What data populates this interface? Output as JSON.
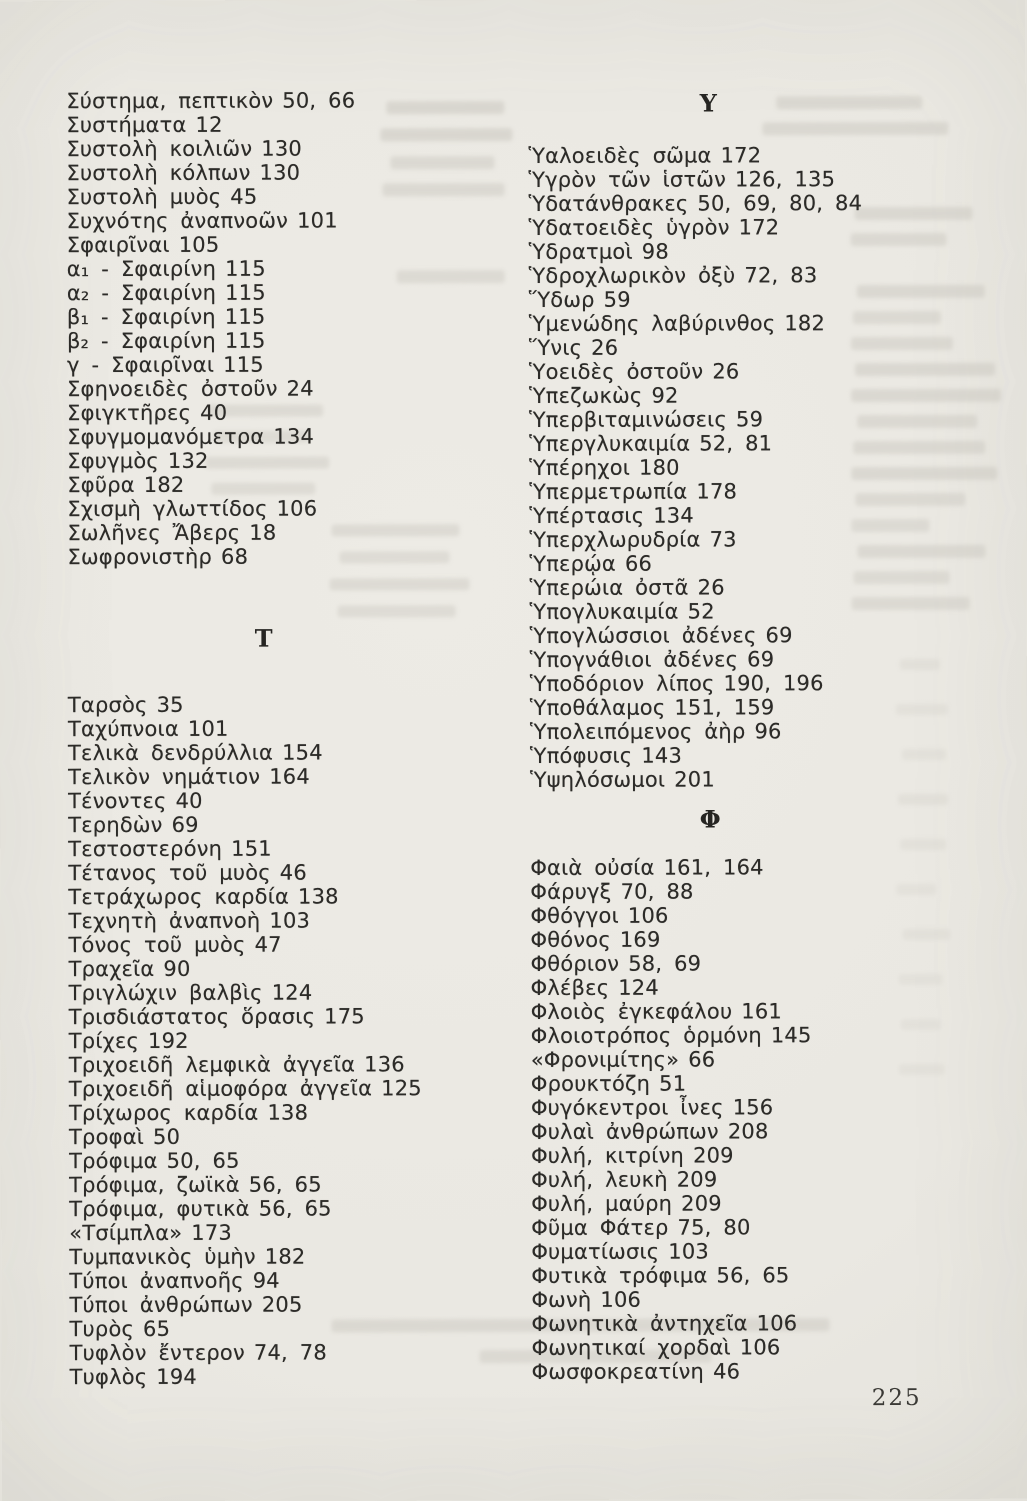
{
  "page": {
    "number": "225"
  },
  "left_column": {
    "sections": [
      {
        "heading": null,
        "entries": [
          {
            "term": "Σύστημα, πεπτικὸν",
            "pages": "50, 66"
          },
          {
            "term": "Συστήματα",
            "pages": "12"
          },
          {
            "term": "Συστολὴ κοιλιῶν",
            "pages": "130"
          },
          {
            "term": "Συστολὴ κόλπων",
            "pages": "130"
          },
          {
            "term": "Συστολὴ μυὸς",
            "pages": "45"
          },
          {
            "term": "Συχνότης ἀναπνοῶν",
            "pages": "101"
          },
          {
            "term": "Σφαιρῖναι",
            "pages": "105"
          },
          {
            "term": "α₁ - Σφαιρίνη",
            "pages": "115"
          },
          {
            "term": "α₂ - Σφαιρίνη",
            "pages": "115"
          },
          {
            "term": "β₁ - Σφαιρίνη",
            "pages": "115"
          },
          {
            "term": "β₂ - Σφαιρίνη",
            "pages": "115"
          },
          {
            "term": "γ - Σφαιρῖναι",
            "pages": "115"
          },
          {
            "term": "Σφηνοειδὲς ὀστοῦν",
            "pages": "24"
          },
          {
            "term": "Σφιγκτῆρες",
            "pages": "40"
          },
          {
            "term": "Σφυγμομανόμετρα",
            "pages": "134"
          },
          {
            "term": "Σφυγμὸς",
            "pages": "132"
          },
          {
            "term": "Σφῦρα",
            "pages": "182"
          },
          {
            "term": "Σχισμὴ γλωττίδος",
            "pages": "106"
          },
          {
            "term": "Σωλῆνες Ἄβερς",
            "pages": "18"
          },
          {
            "term": "Σωφρονιστὴρ",
            "pages": "68"
          }
        ]
      },
      {
        "heading": "Τ",
        "entries": [
          {
            "term": "Ταρσὸς",
            "pages": "35"
          },
          {
            "term": "Ταχύπνοια",
            "pages": "101"
          },
          {
            "term": "Τελικὰ δενδρύλλια",
            "pages": "154"
          },
          {
            "term": "Τελικὸν νημάτιον",
            "pages": "164"
          },
          {
            "term": "Τένοντες",
            "pages": "40"
          },
          {
            "term": "Τερηδὼν",
            "pages": "69"
          },
          {
            "term": "Τεστοστερόνη",
            "pages": "151"
          },
          {
            "term": "Τέτανος τοῦ μυὸς",
            "pages": "46"
          },
          {
            "term": "Τετράχωρος καρδία",
            "pages": "138"
          },
          {
            "term": "Τεχνητὴ ἀναπνοὴ",
            "pages": "103"
          },
          {
            "term": "Τόνος τοῦ μυὸς",
            "pages": "47"
          },
          {
            "term": "Τραχεῖα",
            "pages": "90"
          },
          {
            "term": "Τριγλώχιν βαλβὶς",
            "pages": "124"
          },
          {
            "term": "Τρισδιάστατος ὅρασις",
            "pages": "175"
          },
          {
            "term": "Τρίχες",
            "pages": "192"
          },
          {
            "term": "Τριχοειδῆ λεμφικὰ ἀγγεῖα",
            "pages": "136"
          },
          {
            "term": "Τριχοειδῆ αἱμοφόρα ἀγγεῖα",
            "pages": "125"
          },
          {
            "term": "Τρίχωρος καρδία",
            "pages": "138"
          },
          {
            "term": "Τροφαὶ",
            "pages": "50"
          },
          {
            "term": "Τρόφιμα",
            "pages": "50, 65"
          },
          {
            "term": "Τρόφιμα, ζωϊκὰ",
            "pages": "56, 65"
          },
          {
            "term": "Τρόφιμα, φυτικὰ",
            "pages": "56, 65"
          },
          {
            "term": "«Τσίμπλα»",
            "pages": "173"
          },
          {
            "term": "Τυμπανικὸς ὑμὴν",
            "pages": "182"
          },
          {
            "term": "Τύποι ἀναπνοῆς",
            "pages": "94"
          },
          {
            "term": "Τύποι ἀνθρώπων",
            "pages": "205"
          },
          {
            "term": "Τυρὸς",
            "pages": "65"
          },
          {
            "term": "Τυφλὸν ἔντερον",
            "pages": "74, 78"
          },
          {
            "term": "Τυφλὸς",
            "pages": "194"
          }
        ]
      }
    ]
  },
  "right_column": {
    "sections": [
      {
        "heading": "Υ",
        "entries": [
          {
            "term": "Ὑαλοειδὲς σῶμα",
            "pages": "172"
          },
          {
            "term": "Ὑγρὸν τῶν ἱστῶν",
            "pages": "126, 135"
          },
          {
            "term": "Ὑδατάνθρακες",
            "pages": "50, 69, 80, 84"
          },
          {
            "term": "Ὑδατοειδὲς ὑγρὸν",
            "pages": "172"
          },
          {
            "term": "Ὑδρατμοὶ",
            "pages": "98"
          },
          {
            "term": "Ὑδροχλωρικὸν ὀξὺ",
            "pages": "72, 83"
          },
          {
            "term": "Ὕδωρ",
            "pages": "59"
          },
          {
            "term": "Ὑμενώδης λαβύρινθος",
            "pages": "182"
          },
          {
            "term": "Ὕνις",
            "pages": "26"
          },
          {
            "term": "Ὑοειδὲς ὀστοῦν",
            "pages": "26"
          },
          {
            "term": "Ὑπεζωκὼς",
            "pages": "92"
          },
          {
            "term": "Ὑπερβιταμινώσεις",
            "pages": "59"
          },
          {
            "term": "Ὑπεργλυκαιμία",
            "pages": "52, 81"
          },
          {
            "term": "Ὑπέρηχοι",
            "pages": "180"
          },
          {
            "term": "Ὑπερμετρωπία",
            "pages": "178"
          },
          {
            "term": "Ὑπέρτασις",
            "pages": "134"
          },
          {
            "term": "Ὑπερχλωρυδρία",
            "pages": "73"
          },
          {
            "term": "Ὑπερῴα",
            "pages": "66"
          },
          {
            "term": "Ὑπερώια ὀστᾶ",
            "pages": "26"
          },
          {
            "term": "Ὑπογλυκαιμία",
            "pages": "52"
          },
          {
            "term": "Ὑπογλώσσιοι ἀδένες",
            "pages": "69"
          },
          {
            "term": "Ὑπογνάθιοι ἀδένες",
            "pages": "69"
          },
          {
            "term": "Ὑποδόριον λίπος",
            "pages": "190, 196"
          },
          {
            "term": "Ὑποθάλαμος",
            "pages": "151, 159"
          },
          {
            "term": "Ὑπολειπόμενος ἀὴρ",
            "pages": "96"
          },
          {
            "term": "Ὑπόφυσις",
            "pages": "143"
          },
          {
            "term": "Ὑψηλόσωμοι",
            "pages": "201"
          }
        ]
      },
      {
        "heading": "Φ",
        "entries": [
          {
            "term": "Φαιὰ οὐσία",
            "pages": "161, 164"
          },
          {
            "term": "Φάρυγξ",
            "pages": "70, 88"
          },
          {
            "term": "Φθόγγοι",
            "pages": "106"
          },
          {
            "term": "Φθόνος",
            "pages": "169"
          },
          {
            "term": "Φθόριον",
            "pages": "58, 69"
          },
          {
            "term": "Φλέβες",
            "pages": "124"
          },
          {
            "term": "Φλοιὸς ἐγκεφάλου",
            "pages": "161"
          },
          {
            "term": "Φλοιοτρόπος ὁρμόνη",
            "pages": "145"
          },
          {
            "term": "«Φρονιμίτης»",
            "pages": "66"
          },
          {
            "term": "Φρουκτόζη",
            "pages": "51"
          },
          {
            "term": "Φυγόκεντροι ἶνες",
            "pages": "156"
          },
          {
            "term": "Φυλαὶ ἀνθρώπων",
            "pages": "208"
          },
          {
            "term": "Φυλή, κιτρίνη",
            "pages": "209"
          },
          {
            "term": "Φυλή, λευκὴ",
            "pages": "209"
          },
          {
            "term": "Φυλή, μαύρη",
            "pages": "209"
          },
          {
            "term": "Φῦμα Φάτερ",
            "pages": "75, 80"
          },
          {
            "term": "Φυματίωσις",
            "pages": "103"
          },
          {
            "term": "Φυτικὰ τρόφιμα",
            "pages": "56, 65"
          },
          {
            "term": "Φωνὴ",
            "pages": "106"
          },
          {
            "term": "Φωνητικὰ ἀντηχεῖα",
            "pages": "106"
          },
          {
            "term": "Φωνητικαί χορδαὶ",
            "pages": "106"
          },
          {
            "term": "Φωσφοκρεατίνη",
            "pages": "46"
          }
        ]
      }
    ]
  }
}
